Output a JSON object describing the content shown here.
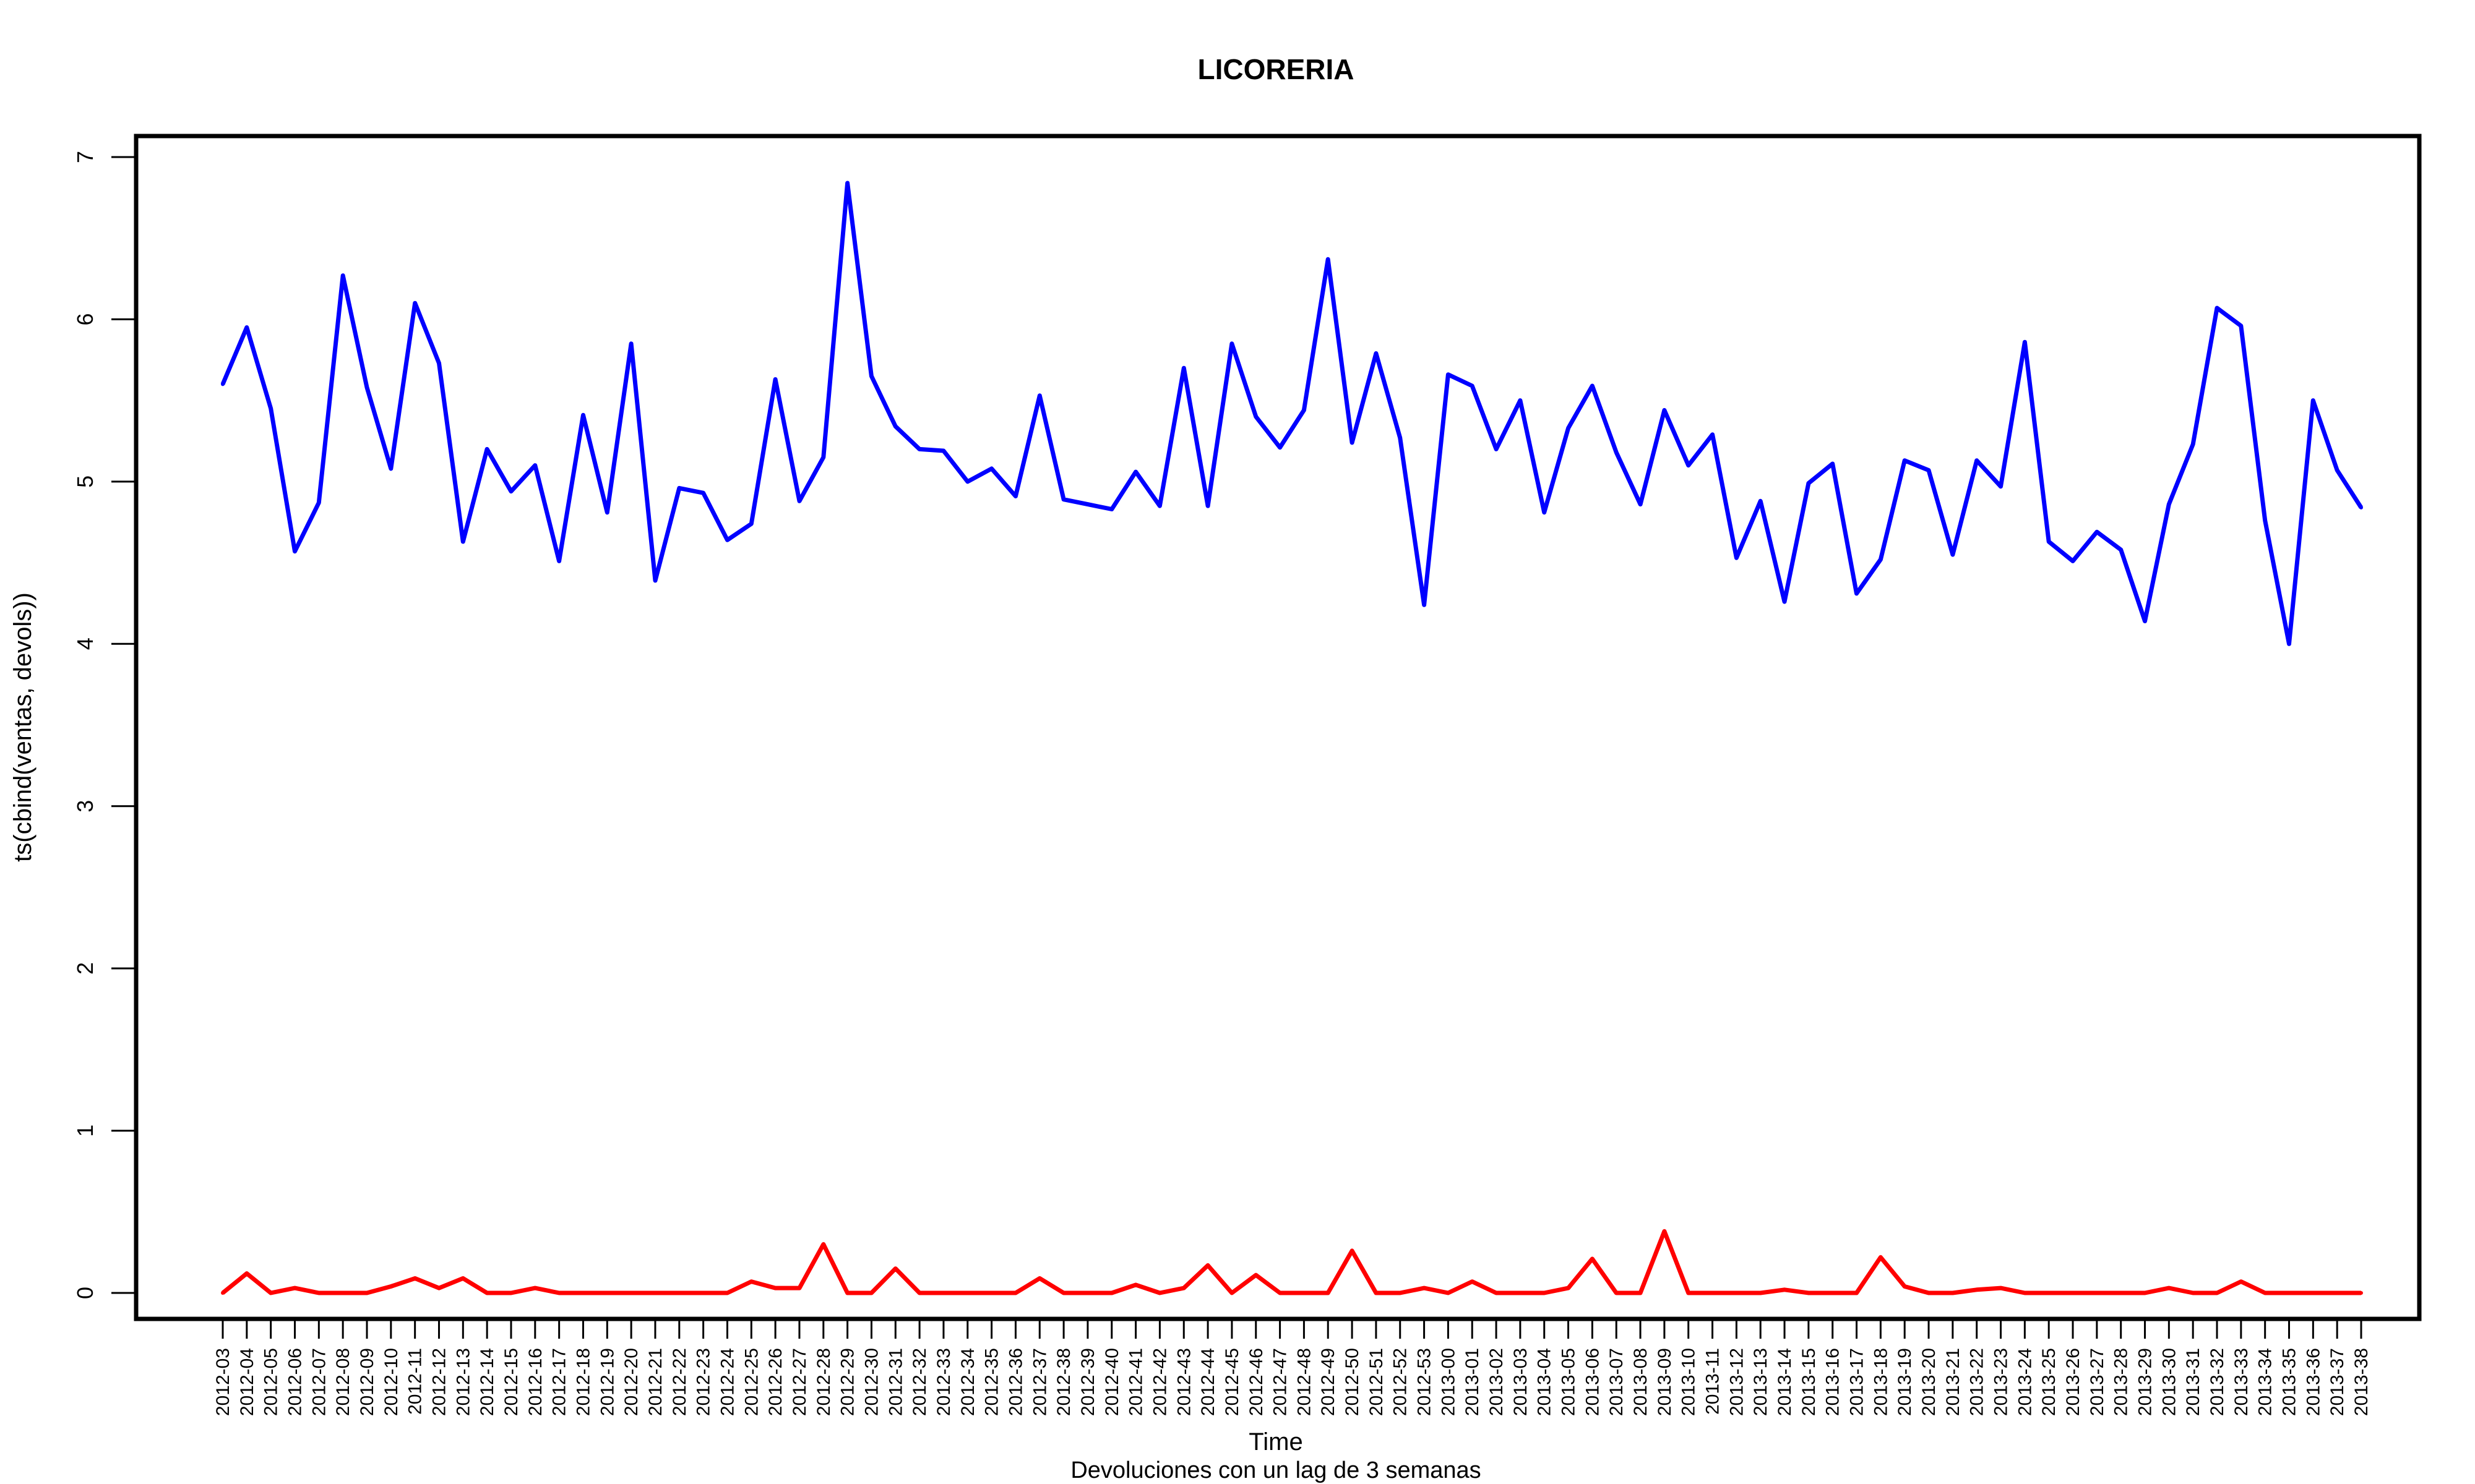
{
  "chart_data": {
    "type": "line",
    "title": "LICORERIA",
    "xlabel": "Time",
    "ylabel": "ts(cbind(ventas, devols))",
    "subtitle": "Devoluciones con un lag de 3 semanas",
    "ylim": [
      0,
      7
    ],
    "yticks": [
      "0",
      "1",
      "2",
      "3",
      "4",
      "5",
      "6",
      "7"
    ],
    "grid": false,
    "legend": "none",
    "x": [
      "2012-03",
      "2012-04",
      "2012-05",
      "2012-06",
      "2012-07",
      "2012-08",
      "2012-09",
      "2012-10",
      "2012-11",
      "2012-12",
      "2012-13",
      "2012-14",
      "2012-15",
      "2012-16",
      "2012-17",
      "2012-18",
      "2012-19",
      "2012-20",
      "2012-21",
      "2012-22",
      "2012-23",
      "2012-24",
      "2012-25",
      "2012-26",
      "2012-27",
      "2012-28",
      "2012-29",
      "2012-30",
      "2012-31",
      "2012-32",
      "2012-33",
      "2012-34",
      "2012-35",
      "2012-36",
      "2012-37",
      "2012-38",
      "2012-39",
      "2012-40",
      "2012-41",
      "2012-42",
      "2012-43",
      "2012-44",
      "2012-45",
      "2012-46",
      "2012-47",
      "2012-48",
      "2012-49",
      "2012-50",
      "2012-51",
      "2012-52",
      "2012-53",
      "2013-00",
      "2013-01",
      "2013-02",
      "2013-03",
      "2013-04",
      "2013-05",
      "2013-06",
      "2013-07",
      "2013-08",
      "2013-09",
      "2013-10",
      "2013-11",
      "2013-12",
      "2013-13",
      "2013-14",
      "2013-15",
      "2013-16",
      "2013-17",
      "2013-18",
      "2013-19",
      "2013-20",
      "2013-21",
      "2013-22",
      "2013-23",
      "2013-24",
      "2013-25",
      "2013-26",
      "2013-27",
      "2013-28",
      "2013-29",
      "2013-30",
      "2013-31",
      "2013-32",
      "2013-33",
      "2013-34",
      "2013-35",
      "2013-36",
      "2013-37",
      "2013-38"
    ],
    "series": [
      {
        "color": "#0000ff",
        "values": [
          5.6,
          5.95,
          5.45,
          4.57,
          4.87,
          6.27,
          5.58,
          5.08,
          6.1,
          5.73,
          4.63,
          5.2,
          4.94,
          5.1,
          4.51,
          5.41,
          4.81,
          5.85,
          4.39,
          4.96,
          4.93,
          4.64,
          4.74,
          5.63,
          4.88,
          5.15,
          6.84,
          5.65,
          5.34,
          5.2,
          5.19,
          5.0,
          5.08,
          4.91,
          5.53,
          4.89,
          4.86,
          4.83,
          5.06,
          4.85,
          5.7,
          4.85,
          5.85,
          5.4,
          5.21,
          5.44,
          6.37,
          5.24,
          5.79,
          5.27,
          4.24,
          5.66,
          5.59,
          5.2,
          5.5,
          4.81,
          5.33,
          5.59,
          5.18,
          4.86,
          5.44,
          5.1,
          5.29,
          4.53,
          4.88,
          4.26,
          4.99,
          5.11,
          4.31,
          4.52,
          5.13,
          5.07,
          4.55,
          5.13,
          4.97,
          5.86,
          4.63,
          4.51,
          4.69,
          4.58,
          4.14,
          4.86,
          5.23,
          6.07,
          5.96,
          4.76,
          4.0,
          5.5,
          5.07,
          4.84
        ]
      },
      {
        "color": "#ff0000",
        "values": [
          0,
          0.12,
          0,
          0.03,
          0,
          0,
          0,
          0.04,
          0.09,
          0.03,
          0.09,
          0,
          0,
          0.03,
          0,
          0,
          0,
          0,
          0,
          0,
          0,
          0,
          0.07,
          0.03,
          0.03,
          0.3,
          0,
          0,
          0.15,
          0,
          0,
          0,
          0,
          0,
          0.09,
          0,
          0,
          0,
          0.05,
          0,
          0.03,
          0.17,
          0,
          0.11,
          0,
          0,
          0,
          0.26,
          0,
          0,
          0.03,
          0,
          0.07,
          0,
          0,
          0,
          0.03,
          0.21,
          0,
          0,
          0.38,
          0,
          0,
          0,
          0,
          0.02,
          0,
          0,
          0,
          0.22,
          0.04,
          0,
          0,
          0.02,
          0.03,
          0,
          0,
          0,
          0,
          0,
          0,
          0.03,
          0,
          0,
          0.07,
          0,
          0,
          0,
          0,
          0
        ]
      }
    ]
  }
}
